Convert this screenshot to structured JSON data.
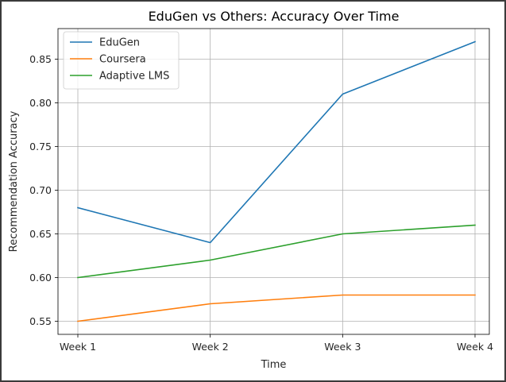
{
  "chart_data": {
    "type": "line",
    "title": "EduGen vs Others: Accuracy Over Time",
    "xlabel": "Time",
    "ylabel": "Recommendation Accuracy",
    "categories": [
      "Week 1",
      "Week 2",
      "Week 3",
      "Week 4"
    ],
    "yticks": [
      "0.55",
      "0.60",
      "0.65",
      "0.70",
      "0.75",
      "0.80",
      "0.85"
    ],
    "ylim": [
      0.535,
      0.885
    ],
    "grid": true,
    "legend_position": "top-left",
    "series": [
      {
        "name": "EduGen",
        "color": "#1f77b4",
        "values": [
          0.68,
          0.64,
          0.81,
          0.87
        ]
      },
      {
        "name": "Coursera",
        "color": "#ff7f0e",
        "values": [
          0.55,
          0.57,
          0.58,
          0.58
        ]
      },
      {
        "name": "Adaptive LMS",
        "color": "#2ca02c",
        "values": [
          0.6,
          0.62,
          0.65,
          0.66
        ]
      }
    ]
  }
}
